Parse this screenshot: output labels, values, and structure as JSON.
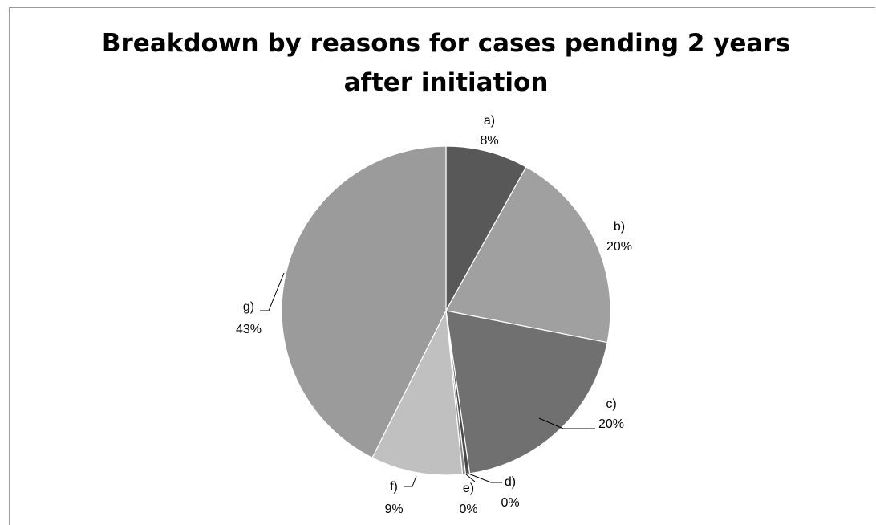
{
  "chart_data": {
    "type": "pie",
    "title": "Breakdown by reasons for cases pending 2 years after initiation",
    "title_lines": [
      "Breakdown by reasons for cases pending 2 years",
      "after initiation"
    ],
    "slices": [
      {
        "category": "a)",
        "label": "8%",
        "value": 8.1,
        "color": "#585858"
      },
      {
        "category": "b)",
        "label": "20%",
        "value": 20.0,
        "color": "#a0a0a0"
      },
      {
        "category": "c)",
        "label": "20%",
        "value": 19.6,
        "color": "#707070"
      },
      {
        "category": "d)",
        "label": "0%",
        "value": 0.4,
        "color": "#4a4a4a"
      },
      {
        "category": "e)",
        "label": "0%",
        "value": 0.3,
        "color": "#8a8a8a"
      },
      {
        "category": "f)",
        "label": "9%",
        "value": 9.0,
        "color": "#c0c0c0"
      },
      {
        "category": "g)",
        "label": "43%",
        "value": 42.6,
        "color": "#9b9b9b"
      }
    ],
    "legend": "none",
    "start_angle": "12 o'clock",
    "direction": "clockwise"
  }
}
